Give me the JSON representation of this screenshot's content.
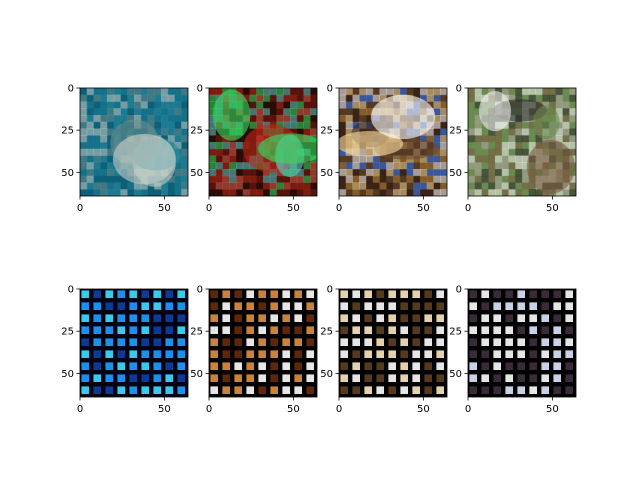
{
  "chart_data": [
    {
      "type": "heatmap",
      "row": 0,
      "col": 0,
      "content": "image",
      "subject": "shark underwater",
      "palette": [
        "#0f5f78",
        "#1c7f97",
        "#2b8fa4",
        "#6a8d8e",
        "#c8d0c8"
      ],
      "xlim": [
        0,
        64
      ],
      "ylim": [
        64,
        0
      ],
      "xticks": [
        0,
        50
      ],
      "yticks": [
        0,
        25,
        50
      ]
    },
    {
      "type": "heatmap",
      "row": 0,
      "col": 1,
      "content": "image",
      "subject": "red-lit house at night",
      "palette": [
        "#2a0d08",
        "#7a1a10",
        "#c02818",
        "#e06050",
        "#5fc8c8",
        "#30e060"
      ],
      "xlim": [
        0,
        64
      ],
      "ylim": [
        64,
        0
      ],
      "xticks": [
        0,
        50
      ],
      "yticks": [
        0,
        25,
        50
      ]
    },
    {
      "type": "heatmap",
      "row": 0,
      "col": 2,
      "content": "image",
      "subject": "flame of a lighter",
      "palette": [
        "#3a2416",
        "#6a4a30",
        "#c08a40",
        "#ffe0a0",
        "#ffffff",
        "#4080ff"
      ],
      "xlim": [
        0,
        64
      ],
      "ylim": [
        64,
        0
      ],
      "xticks": [
        0,
        50
      ],
      "yticks": [
        0,
        25,
        50
      ]
    },
    {
      "type": "heatmap",
      "row": 0,
      "col": 3,
      "content": "image",
      "subject": "people with large barrels outdoors",
      "palette": [
        "#6a8a50",
        "#b0a8a0",
        "#2a2a2a",
        "#f0f0f0",
        "#7a5a40"
      ],
      "xlim": [
        0,
        64
      ],
      "ylim": [
        64,
        0
      ],
      "xticks": [
        0,
        50
      ],
      "yticks": [
        0,
        25,
        50
      ]
    },
    {
      "type": "heatmap",
      "row": 1,
      "col": 0,
      "content": "image",
      "subject": "grid-artifact reconstruction, blue",
      "palette": [
        "#000010",
        "#1040a0",
        "#20a0ff",
        "#40e0ff"
      ],
      "xlim": [
        0,
        64
      ],
      "ylim": [
        64,
        0
      ],
      "xticks": [
        0,
        50
      ],
      "yticks": [
        0,
        25,
        50
      ]
    },
    {
      "type": "heatmap",
      "row": 1,
      "col": 1,
      "content": "image",
      "subject": "grid-artifact reconstruction, orange",
      "palette": [
        "#000000",
        "#6a2a08",
        "#e09040",
        "#ffffff"
      ],
      "xlim": [
        0,
        64
      ],
      "ylim": [
        64,
        0
      ],
      "xticks": [
        0,
        50
      ],
      "yticks": [
        0,
        25,
        50
      ]
    },
    {
      "type": "heatmap",
      "row": 1,
      "col": 2,
      "content": "image",
      "subject": "grid-artifact reconstruction, bright blob",
      "palette": [
        "#000000",
        "#604020",
        "#ffe8c0",
        "#ffffff"
      ],
      "xlim": [
        0,
        64
      ],
      "ylim": [
        64,
        0
      ],
      "xticks": [
        0,
        50
      ],
      "yticks": [
        0,
        25,
        50
      ]
    },
    {
      "type": "heatmap",
      "row": 1,
      "col": 3,
      "content": "image",
      "subject": "grid-artifact reconstruction, light",
      "palette": [
        "#000000",
        "#403040",
        "#e0e8ff",
        "#ffffff"
      ],
      "xlim": [
        0,
        64
      ],
      "ylim": [
        64,
        0
      ],
      "xticks": [
        0,
        50
      ],
      "yticks": [
        0,
        25,
        50
      ]
    }
  ]
}
